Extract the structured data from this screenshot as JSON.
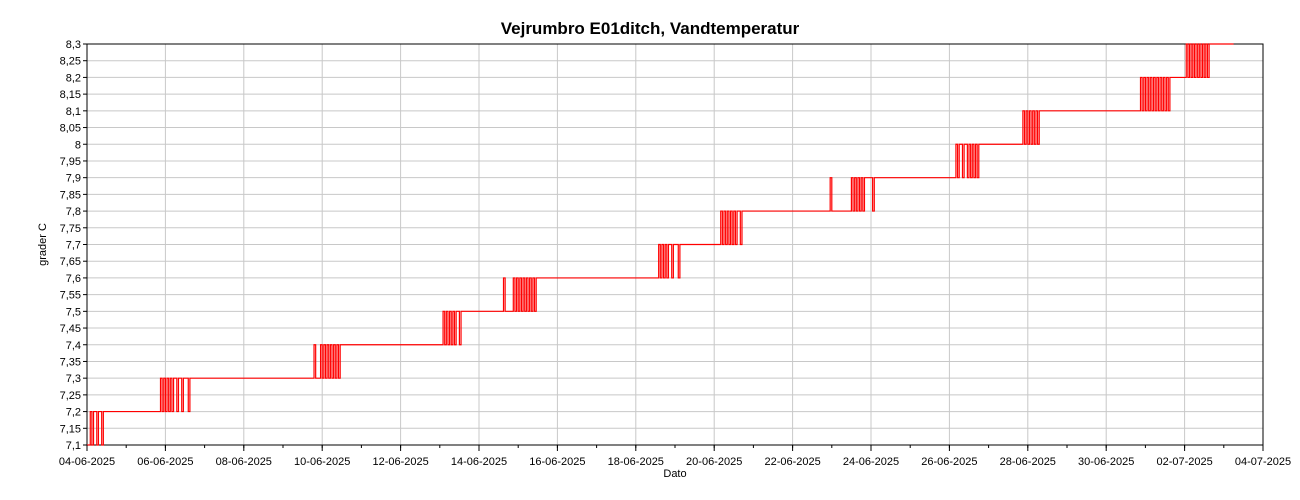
{
  "chart_data": {
    "type": "line",
    "title": "Vejrumbro E01ditch, Vandtemperatur",
    "xlabel": "Dato",
    "ylabel": "grader C",
    "ylim": [
      7.1,
      8.3
    ],
    "xlim": [
      "2025-06-04",
      "2025-07-04"
    ],
    "y_ticks": [
      "7,1",
      "7,15",
      "7,2",
      "7,25",
      "7,3",
      "7,35",
      "7,4",
      "7,45",
      "7,5",
      "7,55",
      "7,6",
      "7,65",
      "7,7",
      "7,75",
      "7,8",
      "7,85",
      "7,9",
      "7,95",
      "8",
      "8,05",
      "8,1",
      "8,15",
      "8,2",
      "8,25",
      "8,3"
    ],
    "x_ticks": [
      "04-06-2025",
      "06-06-2025",
      "08-06-2025",
      "10-06-2025",
      "12-06-2025",
      "14-06-2025",
      "16-06-2025",
      "18-06-2025",
      "20-06-2025",
      "22-06-2025",
      "24-06-2025",
      "26-06-2025",
      "28-06-2025",
      "30-06-2025",
      "02-07-2025",
      "04-07-2025"
    ],
    "grid": true,
    "colors": {
      "series": "#ff0000",
      "grid": "#c8c8c8",
      "axis": "#000000"
    },
    "series": [
      {
        "values": [
          [
            "2025-06-04T00:00",
            7.1
          ],
          [
            "2025-06-04T02:00",
            7.2
          ],
          [
            "2025-06-04T03:00",
            7.1
          ],
          [
            "2025-06-04T04:00",
            7.2
          ],
          [
            "2025-06-04T06:00",
            7.1
          ],
          [
            "2025-06-04T07:00",
            7.2
          ],
          [
            "2025-06-04T09:00",
            7.1
          ],
          [
            "2025-06-04T10:00",
            7.2
          ],
          [
            "2025-06-04T12:00",
            7.2
          ],
          [
            "2025-06-05T20:00",
            7.2
          ],
          [
            "2025-06-05T21:00",
            7.3
          ],
          [
            "2025-06-05T22:00",
            7.2
          ],
          [
            "2025-06-05T23:00",
            7.3
          ],
          [
            "2025-06-06T00:00",
            7.2
          ],
          [
            "2025-06-06T01:00",
            7.3
          ],
          [
            "2025-06-06T02:00",
            7.2
          ],
          [
            "2025-06-06T03:00",
            7.3
          ],
          [
            "2025-06-06T04:00",
            7.2
          ],
          [
            "2025-06-06T05:00",
            7.3
          ],
          [
            "2025-06-06T07:00",
            7.2
          ],
          [
            "2025-06-06T08:00",
            7.3
          ],
          [
            "2025-06-06T10:00",
            7.2
          ],
          [
            "2025-06-06T11:00",
            7.3
          ],
          [
            "2025-06-06T14:00",
            7.2
          ],
          [
            "2025-06-06T15:00",
            7.3
          ],
          [
            "2025-06-09T18:00",
            7.3
          ],
          [
            "2025-06-09T19:00",
            7.4
          ],
          [
            "2025-06-09T20:00",
            7.3
          ],
          [
            "2025-06-09T23:00",
            7.4
          ],
          [
            "2025-06-10T00:00",
            7.3
          ],
          [
            "2025-06-10T01:00",
            7.4
          ],
          [
            "2025-06-10T02:00",
            7.3
          ],
          [
            "2025-06-10T03:00",
            7.4
          ],
          [
            "2025-06-10T04:00",
            7.3
          ],
          [
            "2025-06-10T05:00",
            7.4
          ],
          [
            "2025-06-10T06:00",
            7.3
          ],
          [
            "2025-06-10T07:00",
            7.4
          ],
          [
            "2025-06-10T08:00",
            7.3
          ],
          [
            "2025-06-10T09:00",
            7.4
          ],
          [
            "2025-06-10T10:00",
            7.3
          ],
          [
            "2025-06-10T11:00",
            7.4
          ],
          [
            "2025-06-13T01:00",
            7.4
          ],
          [
            "2025-06-13T02:00",
            7.5
          ],
          [
            "2025-06-13T03:00",
            7.4
          ],
          [
            "2025-06-13T04:00",
            7.5
          ],
          [
            "2025-06-13T05:00",
            7.4
          ],
          [
            "2025-06-13T06:00",
            7.5
          ],
          [
            "2025-06-13T07:00",
            7.4
          ],
          [
            "2025-06-13T08:00",
            7.5
          ],
          [
            "2025-06-13T09:00",
            7.4
          ],
          [
            "2025-06-13T10:00",
            7.5
          ],
          [
            "2025-06-13T12:00",
            7.4
          ],
          [
            "2025-06-13T13:00",
            7.5
          ],
          [
            "2025-06-14T14:00",
            7.5
          ],
          [
            "2025-06-14T15:00",
            7.6
          ],
          [
            "2025-06-14T16:00",
            7.5
          ],
          [
            "2025-06-14T21:00",
            7.6
          ],
          [
            "2025-06-14T22:00",
            7.5
          ],
          [
            "2025-06-14T23:00",
            7.6
          ],
          [
            "2025-06-15T00:00",
            7.5
          ],
          [
            "2025-06-15T01:00",
            7.6
          ],
          [
            "2025-06-15T02:00",
            7.5
          ],
          [
            "2025-06-15T03:00",
            7.6
          ],
          [
            "2025-06-15T04:00",
            7.5
          ],
          [
            "2025-06-15T05:00",
            7.6
          ],
          [
            "2025-06-15T06:00",
            7.5
          ],
          [
            "2025-06-15T07:00",
            7.6
          ],
          [
            "2025-06-15T08:00",
            7.5
          ],
          [
            "2025-06-15T09:00",
            7.6
          ],
          [
            "2025-06-15T10:00",
            7.5
          ],
          [
            "2025-06-15T11:00",
            7.6
          ],
          [
            "2025-06-18T13:00",
            7.6
          ],
          [
            "2025-06-18T14:00",
            7.7
          ],
          [
            "2025-06-18T15:00",
            7.6
          ],
          [
            "2025-06-18T16:00",
            7.7
          ],
          [
            "2025-06-18T17:00",
            7.6
          ],
          [
            "2025-06-18T18:00",
            7.7
          ],
          [
            "2025-06-18T19:00",
            7.6
          ],
          [
            "2025-06-18T20:00",
            7.7
          ],
          [
            "2025-06-18T22:00",
            7.6
          ],
          [
            "2025-06-18T23:00",
            7.7
          ],
          [
            "2025-06-19T02:00",
            7.6
          ],
          [
            "2025-06-19T03:00",
            7.7
          ],
          [
            "2025-06-20T03:00",
            7.7
          ],
          [
            "2025-06-20T04:00",
            7.8
          ],
          [
            "2025-06-20T05:00",
            7.7
          ],
          [
            "2025-06-20T06:00",
            7.8
          ],
          [
            "2025-06-20T07:00",
            7.7
          ],
          [
            "2025-06-20T08:00",
            7.8
          ],
          [
            "2025-06-20T09:00",
            7.7
          ],
          [
            "2025-06-20T10:00",
            7.8
          ],
          [
            "2025-06-20T11:00",
            7.7
          ],
          [
            "2025-06-20T12:00",
            7.8
          ],
          [
            "2025-06-20T13:00",
            7.7
          ],
          [
            "2025-06-20T14:00",
            7.8
          ],
          [
            "2025-06-20T16:00",
            7.7
          ],
          [
            "2025-06-20T17:00",
            7.8
          ],
          [
            "2025-06-22T22:00",
            7.8
          ],
          [
            "2025-06-22T23:00",
            7.9
          ],
          [
            "2025-06-23T00:00",
            7.8
          ],
          [
            "2025-06-23T11:00",
            7.8
          ],
          [
            "2025-06-23T12:00",
            7.9
          ],
          [
            "2025-06-23T13:00",
            7.8
          ],
          [
            "2025-06-23T14:00",
            7.9
          ],
          [
            "2025-06-23T15:00",
            7.8
          ],
          [
            "2025-06-23T16:00",
            7.9
          ],
          [
            "2025-06-23T17:00",
            7.8
          ],
          [
            "2025-06-23T18:00",
            7.9
          ],
          [
            "2025-06-23T19:00",
            7.8
          ],
          [
            "2025-06-23T20:00",
            7.9
          ],
          [
            "2025-06-24T01:00",
            7.8
          ],
          [
            "2025-06-24T02:00",
            7.9
          ],
          [
            "2025-06-26T03:00",
            7.9
          ],
          [
            "2025-06-26T04:00",
            8.0
          ],
          [
            "2025-06-26T05:00",
            7.9
          ],
          [
            "2025-06-26T06:00",
            8.0
          ],
          [
            "2025-06-26T08:00",
            7.9
          ],
          [
            "2025-06-26T09:00",
            8.0
          ],
          [
            "2025-06-26T11:00",
            7.9
          ],
          [
            "2025-06-26T12:00",
            8.0
          ],
          [
            "2025-06-26T13:00",
            7.9
          ],
          [
            "2025-06-26T14:00",
            8.0
          ],
          [
            "2025-06-26T15:00",
            7.9
          ],
          [
            "2025-06-26T16:00",
            8.0
          ],
          [
            "2025-06-26T17:00",
            7.9
          ],
          [
            "2025-06-26T18:00",
            8.0
          ],
          [
            "2025-06-27T20:00",
            8.0
          ],
          [
            "2025-06-27T21:00",
            8.1
          ],
          [
            "2025-06-27T22:00",
            8.0
          ],
          [
            "2025-06-27T23:00",
            8.1
          ],
          [
            "2025-06-28T00:00",
            8.0
          ],
          [
            "2025-06-28T01:00",
            8.1
          ],
          [
            "2025-06-28T02:00",
            8.0
          ],
          [
            "2025-06-28T03:00",
            8.1
          ],
          [
            "2025-06-28T04:00",
            8.0
          ],
          [
            "2025-06-28T05:00",
            8.1
          ],
          [
            "2025-06-28T06:00",
            8.0
          ],
          [
            "2025-06-28T07:00",
            8.1
          ],
          [
            "2025-06-30T20:00",
            8.1
          ],
          [
            "2025-06-30T21:00",
            8.2
          ],
          [
            "2025-06-30T22:00",
            8.1
          ],
          [
            "2025-06-30T23:00",
            8.2
          ],
          [
            "2025-07-01T00:00",
            8.1
          ],
          [
            "2025-07-01T01:00",
            8.2
          ],
          [
            "2025-07-01T02:00",
            8.1
          ],
          [
            "2025-07-01T03:00",
            8.2
          ],
          [
            "2025-07-01T04:00",
            8.1
          ],
          [
            "2025-07-01T05:00",
            8.2
          ],
          [
            "2025-07-01T06:00",
            8.1
          ],
          [
            "2025-07-01T07:00",
            8.2
          ],
          [
            "2025-07-01T08:00",
            8.1
          ],
          [
            "2025-07-01T09:00",
            8.2
          ],
          [
            "2025-07-01T10:00",
            8.1
          ],
          [
            "2025-07-01T11:00",
            8.2
          ],
          [
            "2025-07-01T12:00",
            8.1
          ],
          [
            "2025-07-01T13:00",
            8.2
          ],
          [
            "2025-07-01T14:00",
            8.1
          ],
          [
            "2025-07-01T15:00",
            8.2
          ],
          [
            "2025-07-02T00:00",
            8.2
          ],
          [
            "2025-07-02T01:00",
            8.3
          ],
          [
            "2025-07-02T02:00",
            8.2
          ],
          [
            "2025-07-02T03:00",
            8.3
          ],
          [
            "2025-07-02T04:00",
            8.2
          ],
          [
            "2025-07-02T05:00",
            8.3
          ],
          [
            "2025-07-02T06:00",
            8.2
          ],
          [
            "2025-07-02T07:00",
            8.3
          ],
          [
            "2025-07-02T08:00",
            8.2
          ],
          [
            "2025-07-02T09:00",
            8.3
          ],
          [
            "2025-07-02T10:00",
            8.2
          ],
          [
            "2025-07-02T11:00",
            8.3
          ],
          [
            "2025-07-02T12:00",
            8.2
          ],
          [
            "2025-07-02T13:00",
            8.3
          ],
          [
            "2025-07-02T14:00",
            8.2
          ],
          [
            "2025-07-02T15:00",
            8.3
          ],
          [
            "2025-07-03T06:00",
            8.3
          ]
        ]
      }
    ]
  }
}
